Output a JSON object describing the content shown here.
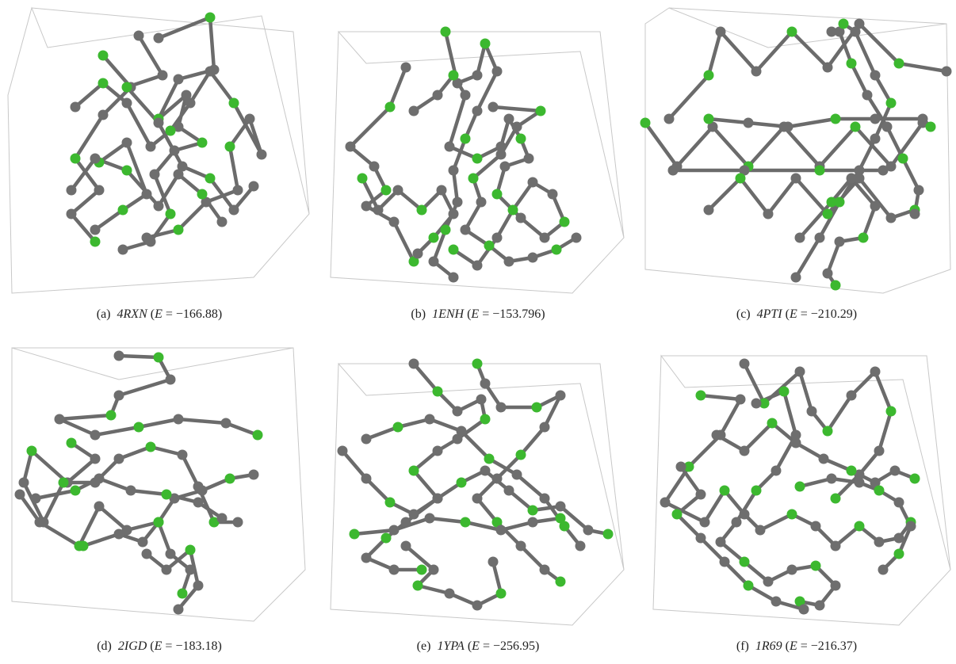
{
  "panels": [
    {
      "label": "(a)",
      "name": "4RXN",
      "energy": "−166.88"
    },
    {
      "label": "(b)",
      "name": "1ENH",
      "energy": "−153.796"
    },
    {
      "label": "(c)",
      "name": "4PTI",
      "energy": "−210.29"
    },
    {
      "label": "(d)",
      "name": "2IGD",
      "energy": "−183.18"
    },
    {
      "label": "(e)",
      "name": "1YPA",
      "energy": "−256.95"
    },
    {
      "label": "(f)",
      "name": "1R69",
      "energy": "−216.37"
    }
  ],
  "colors": {
    "bond": "#6b6b6b",
    "node_gray": "#6e6e6e",
    "node_green": "#3cb82f",
    "box": "#c8c8c8"
  }
}
